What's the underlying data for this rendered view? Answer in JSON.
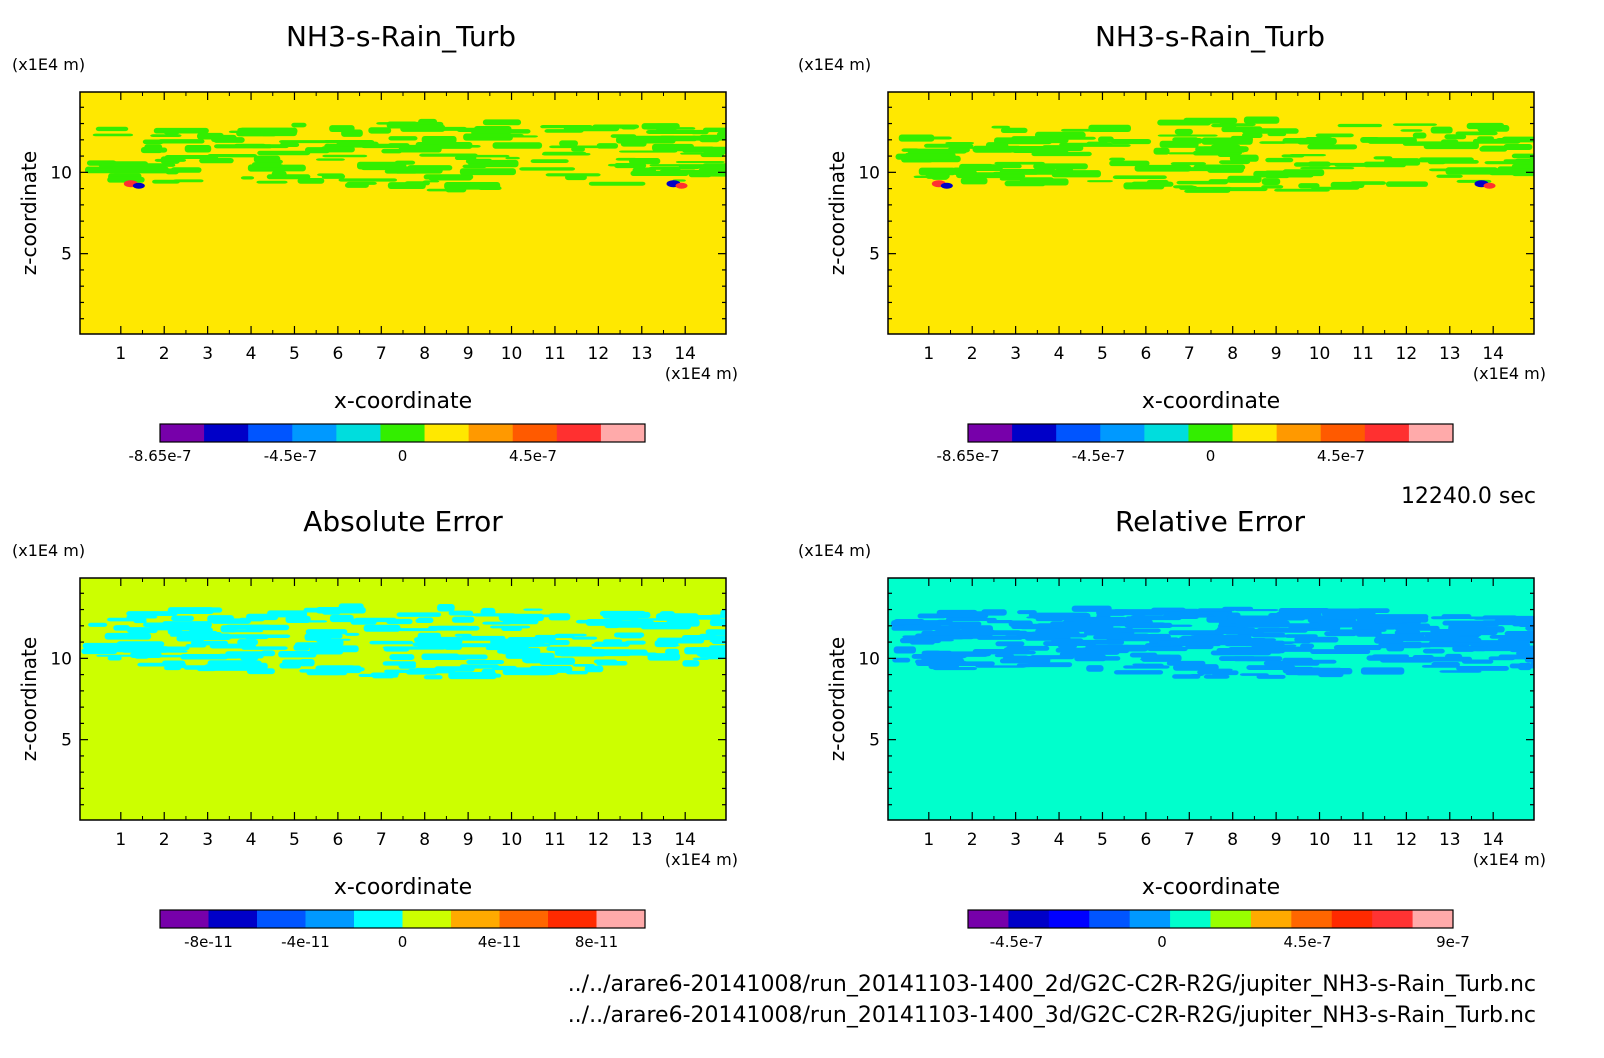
{
  "timestamp": "12240.0 sec",
  "file_paths": [
    "../../arare6-20141008/run_20141103-1400_2d/G2C-C2R-R2G/jupiter_NH3-s-Rain_Turb.nc",
    "../../arare6-20141008/run_20141103-1400_3d/G2C-C2R-R2G/jupiter_NH3-s-Rain_Turb.nc"
  ],
  "colors": {
    "palette_main": [
      "#7700aa",
      "#0000c8",
      "#0055ff",
      "#0099ff",
      "#00dddd",
      "#33ee00",
      "#ffe800",
      "#ff9900",
      "#ff5a00",
      "#ff3030",
      "#ffaaaa"
    ],
    "palette_err": [
      "#7700aa",
      "#0000c8",
      "#0055ff",
      "#0099ff",
      "#00ffff",
      "#ccff00",
      "#ffaa00",
      "#ff6600",
      "#ff2a00",
      "#ffaaaa"
    ],
    "palette_rel": [
      "#7700aa",
      "#0000c8",
      "#0000ff",
      "#0055ff",
      "#0099ff",
      "#00ffcc",
      "#99ff00",
      "#ffaa00",
      "#ff6600",
      "#ff2a00",
      "#ff3333",
      "#ffaaaa"
    ],
    "fill_main": "#ffe800",
    "band_main": "#33ee00",
    "fill_abs": "#ccff00",
    "band_abs": "#00ffff",
    "fill_rel": "#00ffcc",
    "band_rel": "#0099ff"
  },
  "chart_data": [
    {
      "type": "heatmap",
      "title": "NH3-s-Rain_Turb",
      "xlabel": "x-coordinate",
      "ylabel": "z-coordinate",
      "x_unit": "(x1E4 m)",
      "y_unit": "(x1E4 m)",
      "xlim": [
        0.06,
        14.94
      ],
      "ylim": [
        0.06,
        14.94
      ],
      "x_ticks": [
        "1",
        "2",
        "3",
        "4",
        "5",
        "6",
        "7",
        "8",
        "9",
        "10",
        "11",
        "12",
        "13",
        "14"
      ],
      "y_ticks": [
        "5",
        "10"
      ],
      "colorbar_labels": [
        "-8.65e-7",
        "-4.5e-7",
        "0",
        "4.5e-7"
      ],
      "colorbar_values": [
        -8.65e-07,
        -4.5e-07,
        0,
        4.5e-07
      ]
    },
    {
      "type": "heatmap",
      "title": "NH3-s-Rain_Turb",
      "xlabel": "x-coordinate",
      "ylabel": "z-coordinate",
      "x_unit": "(x1E4 m)",
      "y_unit": "(x1E4 m)",
      "xlim": [
        0.06,
        14.94
      ],
      "ylim": [
        0.06,
        14.94
      ],
      "x_ticks": [
        "1",
        "2",
        "3",
        "4",
        "5",
        "6",
        "7",
        "8",
        "9",
        "10",
        "11",
        "12",
        "13",
        "14"
      ],
      "y_ticks": [
        "5",
        "10"
      ],
      "colorbar_labels": [
        "-8.65e-7",
        "-4.5e-7",
        "0",
        "4.5e-7"
      ],
      "colorbar_values": [
        -8.65e-07,
        -4.5e-07,
        0,
        4.5e-07
      ]
    },
    {
      "type": "heatmap",
      "title": "Absolute Error",
      "xlabel": "x-coordinate",
      "ylabel": "z-coordinate",
      "x_unit": "(x1E4 m)",
      "y_unit": "(x1E4 m)",
      "xlim": [
        0.06,
        14.94
      ],
      "ylim": [
        0.06,
        14.94
      ],
      "x_ticks": [
        "1",
        "2",
        "3",
        "4",
        "5",
        "6",
        "7",
        "8",
        "9",
        "10",
        "11",
        "12",
        "13",
        "14"
      ],
      "y_ticks": [
        "5",
        "10"
      ],
      "colorbar_labels": [
        "-8e-11",
        "-4e-11",
        "0",
        "4e-11",
        "8e-11"
      ],
      "colorbar_values": [
        -8e-11,
        -4e-11,
        0,
        4e-11,
        8e-11
      ]
    },
    {
      "type": "heatmap",
      "title": "Relative Error",
      "xlabel": "x-coordinate",
      "ylabel": "z-coordinate",
      "x_unit": "(x1E4 m)",
      "y_unit": "(x1E4 m)",
      "xlim": [
        0.06,
        14.94
      ],
      "ylim": [
        0.06,
        14.94
      ],
      "x_ticks": [
        "1",
        "2",
        "3",
        "4",
        "5",
        "6",
        "7",
        "8",
        "9",
        "10",
        "11",
        "12",
        "13",
        "14"
      ],
      "y_ticks": [
        "5",
        "10"
      ],
      "colorbar_labels": [
        "-4.5e-7",
        "0",
        "4.5e-7",
        "9e-7"
      ],
      "colorbar_values": [
        -4.5e-07,
        0,
        4.5e-07,
        9e-07
      ]
    }
  ]
}
